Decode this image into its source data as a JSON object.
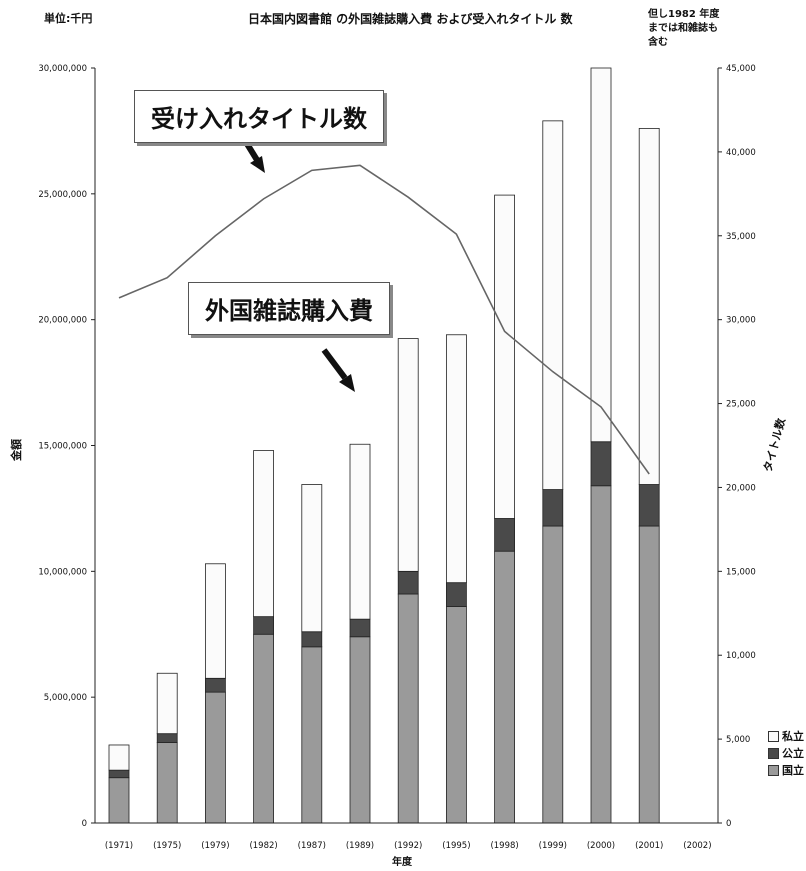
{
  "header": {
    "unit_label": "単位:千円",
    "title": "日本国内図書館 の外国雑誌購入費 および受入れタイトル 数",
    "note": "但し1982 年度までは和雑誌も含む"
  },
  "callouts": {
    "titles_label": "受け入れタイトル数",
    "spend_label": "外国雑誌購入費"
  },
  "chart_data": {
    "type": "bar",
    "stacked": true,
    "categories": [
      "(1971)",
      "(1975)",
      "(1979)",
      "(1982)",
      "(1987)",
      "(1989)",
      "(1992)",
      "(1995)",
      "(1998)",
      "(1999)",
      "(2000)",
      "(2001)",
      "(2002)"
    ],
    "xlabel": "年度",
    "ylabel": "金額",
    "y2label": "タイトル数",
    "ylim": [
      0,
      30000000
    ],
    "y2lim": [
      0,
      45000
    ],
    "yticks": [
      "0",
      "5,000,000",
      "10,000,000",
      "15,000,000",
      "20,000,000",
      "25,000,000",
      "30,000,000"
    ],
    "y2ticks": [
      "0",
      "5,000",
      "10,000",
      "15,000",
      "20,000",
      "25,000",
      "30,000",
      "35,000",
      "40,000",
      "45,000"
    ],
    "series": [
      {
        "name": "国立",
        "color": "#9a9a9a",
        "values": [
          1800000,
          3200000,
          5200000,
          7500000,
          7000000,
          7400000,
          9100000,
          8600000,
          10800000,
          11800000,
          13400000,
          11800000,
          null
        ]
      },
      {
        "name": "公立",
        "color": "#4a4a4a",
        "values": [
          300000,
          350000,
          550000,
          700000,
          600000,
          700000,
          900000,
          950000,
          1300000,
          1450000,
          1750000,
          1650000,
          null
        ]
      },
      {
        "name": "私立",
        "color": "#fbfbfb",
        "values": [
          1000000,
          2400000,
          4550000,
          6600000,
          5850000,
          6950000,
          9250000,
          9850000,
          12850000,
          14650000,
          14850000,
          14150000,
          null
        ]
      }
    ],
    "line": {
      "name": "受け入れタイトル数",
      "axis": "right",
      "color": "#666666",
      "values": [
        31300,
        32500,
        35000,
        37200,
        38900,
        39200,
        37300,
        35100,
        29300,
        26900,
        24800,
        20800,
        null
      ]
    },
    "legend": {
      "position": "right-bottom",
      "items": [
        "私立",
        "公立",
        "国立"
      ]
    }
  }
}
